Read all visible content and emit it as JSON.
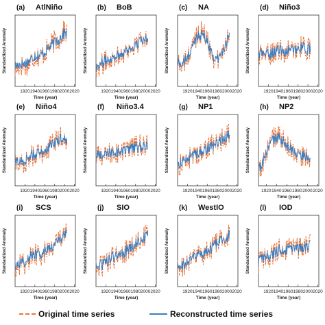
{
  "chart_data": {
    "type": "line",
    "legend": {
      "placement": "bottom",
      "entries": [
        {
          "label": "Original time series",
          "color": "#e8743b",
          "style": "dashed"
        },
        {
          "label": "Reconstructed time series",
          "color": "#3a7dc0",
          "style": "solid"
        }
      ]
    },
    "axis_titles": {
      "x": "Time (year)",
      "y": "Standardized Anomaly"
    },
    "panels": [
      {
        "letter": "(a)",
        "title": "AtlNiño",
        "xticks": [
          "1920",
          "1940",
          "1960",
          "1980",
          "2000",
          "2020"
        ],
        "xlim": [
          1900,
          2022
        ],
        "ylim": [
          -3,
          3
        ],
        "start": 1900,
        "end": 2005,
        "series": {
          "original": {
            "years": [
              1900,
              1910,
              1920,
              1930,
              1940,
              1950,
              1960,
              1970,
              1980,
              1990,
              2000,
              2005
            ],
            "values": [
              -1.6,
              -1.2,
              -1.3,
              -1.0,
              -0.4,
              -0.5,
              -0.2,
              0.4,
              0.8,
              1.0,
              1.7,
              1.5
            ]
          },
          "reconstructed": {
            "years": [
              1900,
              1910,
              1920,
              1930,
              1940,
              1950,
              1960,
              1970,
              1980,
              1990,
              2000,
              2005
            ],
            "values": [
              -1.3,
              -1.1,
              -1.1,
              -0.8,
              -0.4,
              -0.4,
              -0.1,
              0.3,
              0.7,
              1.0,
              1.5,
              1.4
            ]
          }
        }
      },
      {
        "letter": "(b)",
        "title": "BoB",
        "xticks": [
          "1920",
          "1940",
          "1960",
          "1980",
          "2000",
          "2020"
        ],
        "xlim": [
          1900,
          2022
        ],
        "ylim": [
          -3,
          3
        ],
        "start": 1900,
        "end": 2005,
        "series": {
          "original": {
            "years": [
              1900,
              1910,
              1920,
              1930,
              1940,
              1950,
              1960,
              1970,
              1980,
              1990,
              2000,
              2005
            ],
            "values": [
              -1.5,
              -1.2,
              -0.9,
              -0.6,
              -0.4,
              -0.3,
              0.0,
              0.2,
              0.4,
              0.8,
              1.2,
              1.5
            ]
          },
          "reconstructed": {
            "years": [
              1900,
              1910,
              1920,
              1930,
              1940,
              1950,
              1960,
              1970,
              1980,
              1990,
              2000,
              2005
            ],
            "values": [
              -1.3,
              -1.1,
              -0.8,
              -0.6,
              -0.4,
              -0.3,
              0.0,
              0.2,
              0.4,
              0.8,
              1.1,
              1.3
            ]
          }
        }
      },
      {
        "letter": "(c)",
        "title": "NA",
        "xticks": [
          "1920",
          "1940",
          "1960",
          "1980",
          "2000",
          "2020"
        ],
        "xlim": [
          1900,
          2022
        ],
        "ylim": [
          -3,
          3
        ],
        "start": 1900,
        "end": 2005,
        "series": {
          "original": {
            "years": [
              1900,
              1910,
              1920,
              1930,
              1940,
              1950,
              1960,
              1970,
              1980,
              1990,
              2000,
              2005
            ],
            "values": [
              -1.0,
              -1.2,
              -0.7,
              0.4,
              1.5,
              1.6,
              0.9,
              -0.4,
              -0.9,
              -0.2,
              0.9,
              2.0
            ]
          },
          "reconstructed": {
            "years": [
              1900,
              1910,
              1920,
              1930,
              1940,
              1950,
              1960,
              1970,
              1980,
              1990,
              2000,
              2005
            ],
            "values": [
              -1.0,
              -1.1,
              -0.6,
              0.3,
              1.3,
              1.4,
              0.8,
              -0.3,
              -0.8,
              -0.2,
              0.8,
              1.9
            ]
          }
        }
      },
      {
        "letter": "(d)",
        "title": "Niño3",
        "xticks": [
          "1920",
          "1940",
          "1960",
          "1980",
          "2000",
          "2020"
        ],
        "xlim": [
          1900,
          2022
        ],
        "ylim": [
          -3,
          3
        ],
        "start": 1900,
        "end": 2005,
        "series": {
          "original": {
            "years": [
              1900,
              1910,
              1920,
              1930,
              1940,
              1950,
              1960,
              1970,
              1980,
              1990,
              2000,
              2005
            ],
            "values": [
              -0.4,
              -0.3,
              -0.3,
              -0.1,
              0.1,
              -0.2,
              0.0,
              0.1,
              0.3,
              0.3,
              0.1,
              0.3
            ]
          },
          "reconstructed": {
            "years": [
              1900,
              1910,
              1920,
              1930,
              1940,
              1950,
              1960,
              1970,
              1980,
              1990,
              2000,
              2005
            ],
            "values": [
              -0.3,
              -0.2,
              -0.3,
              -0.1,
              0.1,
              -0.1,
              0.0,
              0.1,
              0.2,
              0.3,
              0.1,
              0.2
            ]
          }
        }
      },
      {
        "letter": "(e)",
        "title": "Niño4",
        "xticks": [
          "1920",
          "1940",
          "1960",
          "1980",
          "2000",
          "2020"
        ],
        "xlim": [
          1900,
          2022
        ],
        "ylim": [
          -3,
          3
        ],
        "start": 1900,
        "end": 2005,
        "series": {
          "original": {
            "years": [
              1900,
              1910,
              1920,
              1930,
              1940,
              1950,
              1960,
              1970,
              1980,
              1990,
              2000,
              2005
            ],
            "values": [
              -1.3,
              -1.0,
              -1.1,
              -0.6,
              -0.3,
              -0.4,
              -0.1,
              0.3,
              0.7,
              1.0,
              1.3,
              0.8
            ]
          },
          "reconstructed": {
            "years": [
              1900,
              1910,
              1920,
              1930,
              1940,
              1950,
              1960,
              1970,
              1980,
              1990,
              2000,
              2005
            ],
            "values": [
              -1.1,
              -0.9,
              -0.9,
              -0.5,
              -0.3,
              -0.3,
              0.0,
              0.3,
              0.6,
              0.9,
              1.2,
              0.8
            ]
          }
        }
      },
      {
        "letter": "(f)",
        "title": "Niño3.4",
        "xticks": [
          "1920",
          "1940",
          "1960",
          "1980",
          "2000",
          "2020"
        ],
        "xlim": [
          1900,
          2022
        ],
        "ylim": [
          -3,
          3
        ],
        "start": 1900,
        "end": 2005,
        "series": {
          "original": {
            "years": [
              1900,
              1910,
              1920,
              1930,
              1940,
              1950,
              1960,
              1970,
              1980,
              1990,
              2000,
              2005
            ],
            "values": [
              -0.6,
              -0.4,
              -0.5,
              -0.3,
              -0.1,
              -0.3,
              0.0,
              0.1,
              0.3,
              0.4,
              0.3,
              0.4
            ]
          },
          "reconstructed": {
            "years": [
              1900,
              1910,
              1920,
              1930,
              1940,
              1950,
              1960,
              1970,
              1980,
              1990,
              2000,
              2005
            ],
            "values": [
              -0.5,
              -0.4,
              -0.4,
              -0.2,
              -0.1,
              -0.2,
              0.0,
              0.1,
              0.2,
              0.3,
              0.3,
              0.3
            ]
          }
        }
      },
      {
        "letter": "(g)",
        "title": "NP1",
        "xticks": [
          "1920",
          "1940",
          "1960",
          "1980",
          "2000",
          "2020"
        ],
        "xlim": [
          1900,
          2022
        ],
        "ylim": [
          -3,
          3
        ],
        "start": 1900,
        "end": 2005,
        "series": {
          "original": {
            "years": [
              1900,
              1910,
              1920,
              1930,
              1940,
              1950,
              1960,
              1970,
              1980,
              1990,
              2000,
              2005
            ],
            "values": [
              -1.4,
              -1.1,
              -0.8,
              -0.5,
              -0.2,
              -0.3,
              0.1,
              0.4,
              0.6,
              0.9,
              1.3,
              1.4
            ]
          },
          "reconstructed": {
            "years": [
              1900,
              1910,
              1920,
              1930,
              1940,
              1950,
              1960,
              1970,
              1980,
              1990,
              2000,
              2005
            ],
            "values": [
              -1.2,
              -1.0,
              -0.7,
              -0.4,
              -0.2,
              -0.2,
              0.1,
              0.3,
              0.6,
              0.9,
              1.2,
              1.3
            ]
          }
        }
      },
      {
        "letter": "(h)",
        "title": "NP2",
        "xticks": [
          "1920",
          "1940",
          "1960",
          "1980",
          "2000",
          "2020"
        ],
        "xlim": [
          1905,
          2022
        ],
        "ylim": [
          -3,
          3
        ],
        "start": 1905,
        "end": 2005,
        "series": {
          "original": {
            "years": [
              1905,
              1910,
              1920,
              1930,
              1940,
              1950,
              1960,
              1970,
              1980,
              1990,
              2000,
              2005
            ],
            "values": [
              -1.8,
              -1.6,
              -0.2,
              0.8,
              1.3,
              0.9,
              0.3,
              0.1,
              -0.3,
              -0.6,
              -0.5,
              -0.8
            ]
          },
          "reconstructed": {
            "years": [
              1905,
              1910,
              1920,
              1930,
              1940,
              1950,
              1960,
              1970,
              1980,
              1990,
              2000,
              2005
            ],
            "values": [
              -1.6,
              -1.4,
              -0.2,
              0.7,
              1.1,
              0.8,
              0.3,
              0.1,
              -0.3,
              -0.5,
              -0.5,
              -0.7
            ]
          }
        }
      },
      {
        "letter": "(i)",
        "title": "SCS",
        "xticks": [
          "1920",
          "1940",
          "1960",
          "1980",
          "2000",
          "2020"
        ],
        "xlim": [
          1900,
          2022
        ],
        "ylim": [
          -3,
          3
        ],
        "start": 1900,
        "end": 2005,
        "series": {
          "original": {
            "years": [
              1900,
              1910,
              1920,
              1930,
              1940,
              1950,
              1960,
              1970,
              1980,
              1990,
              2000,
              2005
            ],
            "values": [
              -1.4,
              -1.1,
              -1.0,
              -0.6,
              -0.3,
              -0.4,
              -0.1,
              0.3,
              0.7,
              1.0,
              1.6,
              1.5
            ]
          },
          "reconstructed": {
            "years": [
              1900,
              1910,
              1920,
              1930,
              1940,
              1950,
              1960,
              1970,
              1980,
              1990,
              2000,
              2005
            ],
            "values": [
              -1.2,
              -1.0,
              -0.9,
              -0.5,
              -0.3,
              -0.3,
              0.0,
              0.3,
              0.6,
              0.9,
              1.5,
              1.4
            ]
          }
        }
      },
      {
        "letter": "(j)",
        "title": "SIO",
        "xticks": [
          "1920",
          "1940",
          "1960",
          "1980",
          "2000",
          "2020"
        ],
        "xlim": [
          1900,
          2022
        ],
        "ylim": [
          -3,
          3
        ],
        "start": 1900,
        "end": 2005,
        "series": {
          "original": {
            "years": [
              1900,
              1910,
              1920,
              1930,
              1940,
              1950,
              1960,
              1970,
              1980,
              1990,
              2000,
              2005
            ],
            "values": [
              -1.5,
              -1.3,
              -1.1,
              -0.7,
              -0.4,
              -0.3,
              0.0,
              0.3,
              0.6,
              0.9,
              1.3,
              1.5
            ]
          },
          "reconstructed": {
            "years": [
              1900,
              1910,
              1920,
              1930,
              1940,
              1950,
              1960,
              1970,
              1980,
              1990,
              2000,
              2005
            ],
            "values": [
              -1.3,
              -1.2,
              -1.0,
              -0.6,
              -0.4,
              -0.3,
              0.0,
              0.3,
              0.6,
              0.9,
              1.2,
              1.4
            ]
          }
        }
      },
      {
        "letter": "(k)",
        "title": "WestIO",
        "xticks": [
          "1920",
          "1940",
          "1960",
          "1980",
          "2000",
          "2020"
        ],
        "xlim": [
          1900,
          2022
        ],
        "ylim": [
          -3,
          3
        ],
        "start": 1900,
        "end": 2005,
        "series": {
          "original": {
            "years": [
              1900,
              1910,
              1920,
              1930,
              1940,
              1950,
              1960,
              1970,
              1980,
              1990,
              2000,
              2005
            ],
            "values": [
              -1.6,
              -1.3,
              -1.1,
              -0.7,
              -0.4,
              -0.4,
              0.0,
              0.3,
              0.6,
              0.9,
              1.3,
              1.6
            ]
          },
          "reconstructed": {
            "years": [
              1900,
              1910,
              1920,
              1930,
              1940,
              1950,
              1960,
              1970,
              1980,
              1990,
              2000,
              2005
            ],
            "values": [
              -1.4,
              -1.2,
              -1.0,
              -0.6,
              -0.4,
              -0.3,
              0.0,
              0.3,
              0.6,
              0.9,
              1.2,
              1.5
            ]
          }
        }
      },
      {
        "letter": "(l)",
        "title": "IOD",
        "xticks": [
          "1920",
          "1940",
          "1960",
          "1980",
          "2000",
          "2020"
        ],
        "xlim": [
          1900,
          2022
        ],
        "ylim": [
          -3,
          3
        ],
        "start": 1900,
        "end": 2005,
        "series": {
          "original": {
            "years": [
              1900,
              1910,
              1920,
              1930,
              1940,
              1950,
              1960,
              1970,
              1980,
              1990,
              2000,
              2005
            ],
            "values": [
              -0.9,
              -0.7,
              -0.5,
              -0.3,
              0.2,
              0.0,
              0.1,
              0.3,
              0.2,
              0.4,
              0.5,
              0.6
            ]
          },
          "reconstructed": {
            "years": [
              1900,
              1910,
              1920,
              1930,
              1940,
              1950,
              1960,
              1970,
              1980,
              1990,
              2000,
              2005
            ],
            "values": [
              -0.8,
              -0.6,
              -0.4,
              -0.3,
              0.1,
              0.0,
              0.1,
              0.2,
              0.2,
              0.3,
              0.4,
              0.5
            ]
          }
        }
      }
    ]
  }
}
